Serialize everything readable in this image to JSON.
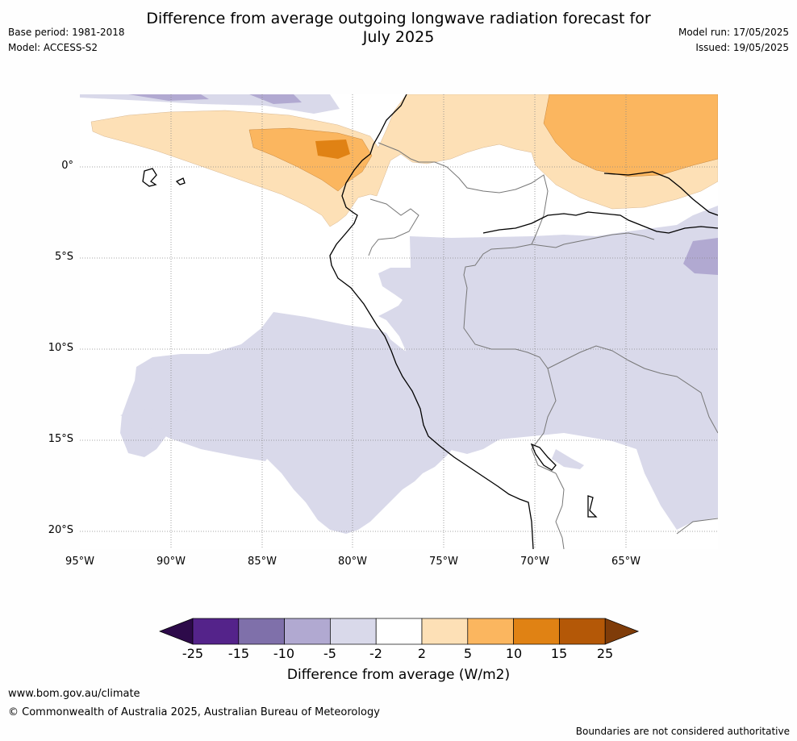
{
  "header": {
    "title_line1": "Difference from average outgoing longwave radiation forecast for",
    "title_line2": "July 2025",
    "base_period": "Base period: 1981-2018",
    "model": "Model: ACCESS-S2",
    "model_run": "Model run: 17/05/2025",
    "issued": "Issued: 19/05/2025"
  },
  "map": {
    "lat_labels": [
      "0°",
      "5°S",
      "10°S",
      "15°S",
      "20°S"
    ],
    "lon_labels": [
      "95°W",
      "90°W",
      "85°W",
      "80°W",
      "75°W",
      "70°W",
      "65°W"
    ]
  },
  "colorbar": {
    "label": "Difference from average (W/m2)",
    "ticks": [
      "-25",
      "-15",
      "-10",
      "-5",
      "-2",
      "2",
      "5",
      "10",
      "15",
      "25"
    ],
    "colors": [
      "#2d0a4a",
      "#54238a",
      "#7f70aa",
      "#b1a9d1",
      "#d9d9ea",
      "#ffffff",
      "#fde0b6",
      "#fbb65f",
      "#e08214",
      "#b45807",
      "#7f3c09"
    ]
  },
  "footer": {
    "website": "www.bom.gov.au/climate",
    "copyright": "© Commonwealth of Australia 2025, Australian Bureau of Meteorology",
    "disclaimer": "Boundaries are not considered authoritative"
  }
}
